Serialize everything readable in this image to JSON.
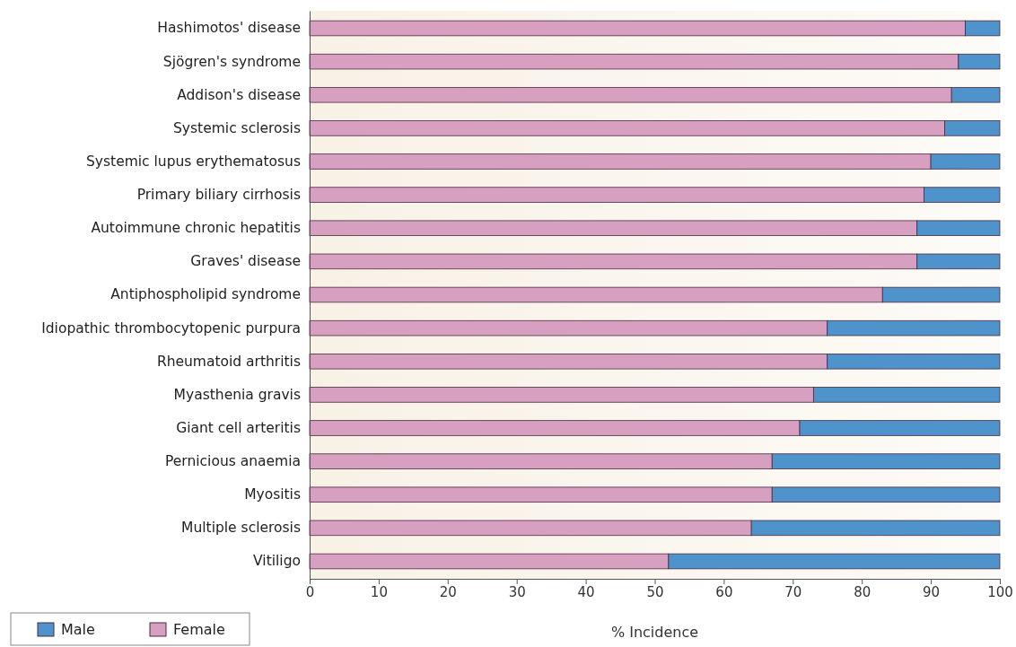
{
  "chart_data": {
    "type": "bar",
    "orientation": "horizontal",
    "stacked": true,
    "xlabel": "% Incidence",
    "categories": [
      "Hashimotos' disease",
      "Sjögren's syndrome",
      "Addison's disease",
      "Systemic sclerosis",
      "Systemic lupus erythematosus",
      "Primary biliary cirrhosis",
      "Autoimmune chronic hepatitis",
      "Graves' disease",
      "Antiphospholipid syndrome",
      "Idiopathic thrombocytopenic purpura",
      "Rheumatoid arthritis",
      "Myasthenia gravis",
      "Giant cell arteritis",
      "Pernicious anaemia",
      "Myositis",
      "Multiple sclerosis",
      "Vitiligo"
    ],
    "series": [
      {
        "name": "Female",
        "color": "#d8a0c0",
        "values": [
          95,
          94,
          93,
          92,
          90,
          89,
          88,
          88,
          83,
          75,
          75,
          73,
          71,
          67,
          67,
          64,
          52
        ]
      },
      {
        "name": "Male",
        "color": "#4f93cc",
        "values": [
          5,
          6,
          7,
          8,
          10,
          11,
          12,
          12,
          17,
          25,
          25,
          27,
          29,
          33,
          33,
          36,
          48
        ]
      }
    ],
    "xlim": [
      0,
      100
    ],
    "xticks": [
      0,
      10,
      20,
      30,
      40,
      50,
      60,
      70,
      80,
      90,
      100
    ],
    "grid": false,
    "legend": "bottom left"
  }
}
